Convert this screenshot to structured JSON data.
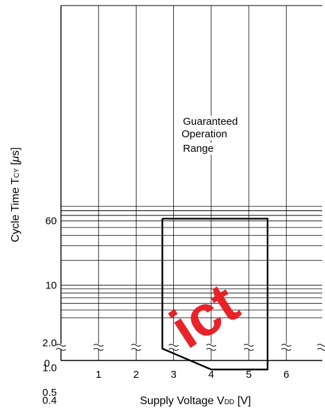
{
  "chart_data": {
    "type": "area",
    "title": "",
    "xlabel": {
      "main": "Supply Voltage V",
      "sub": "DD",
      "unit": " [V]"
    },
    "ylabel": {
      "main": "Cycle Time T",
      "sub": "CY",
      "unit_open": " [",
      "mu": "μ",
      "unit_close": "s]"
    },
    "x_ticks": [
      "1",
      "2",
      "3",
      "4",
      "5",
      "6"
    ],
    "xlim": [
      0,
      7
    ],
    "y_scale": "log",
    "y_ticks": [
      "60",
      "10",
      "2.0",
      "1.0",
      "0.5",
      "0.4"
    ],
    "y_zero_label": "0",
    "y_axis_break": true,
    "grid": true,
    "series": [
      {
        "name": "Guaranteed Operation Range",
        "points": [
          {
            "x": 2.7,
            "y": 64
          },
          {
            "x": 5.5,
            "y": 64
          },
          {
            "x": 5.5,
            "y": 0.95
          },
          {
            "x": 4.0,
            "y": 0.95
          },
          {
            "x": 2.7,
            "y": 1.7
          },
          {
            "x": 2.7,
            "y": 64
          }
        ]
      }
    ],
    "annotations": [
      "Guaranteed",
      "Operation",
      "Range"
    ]
  },
  "watermark": {
    "text": "ict",
    "color": "#e8181f"
  }
}
